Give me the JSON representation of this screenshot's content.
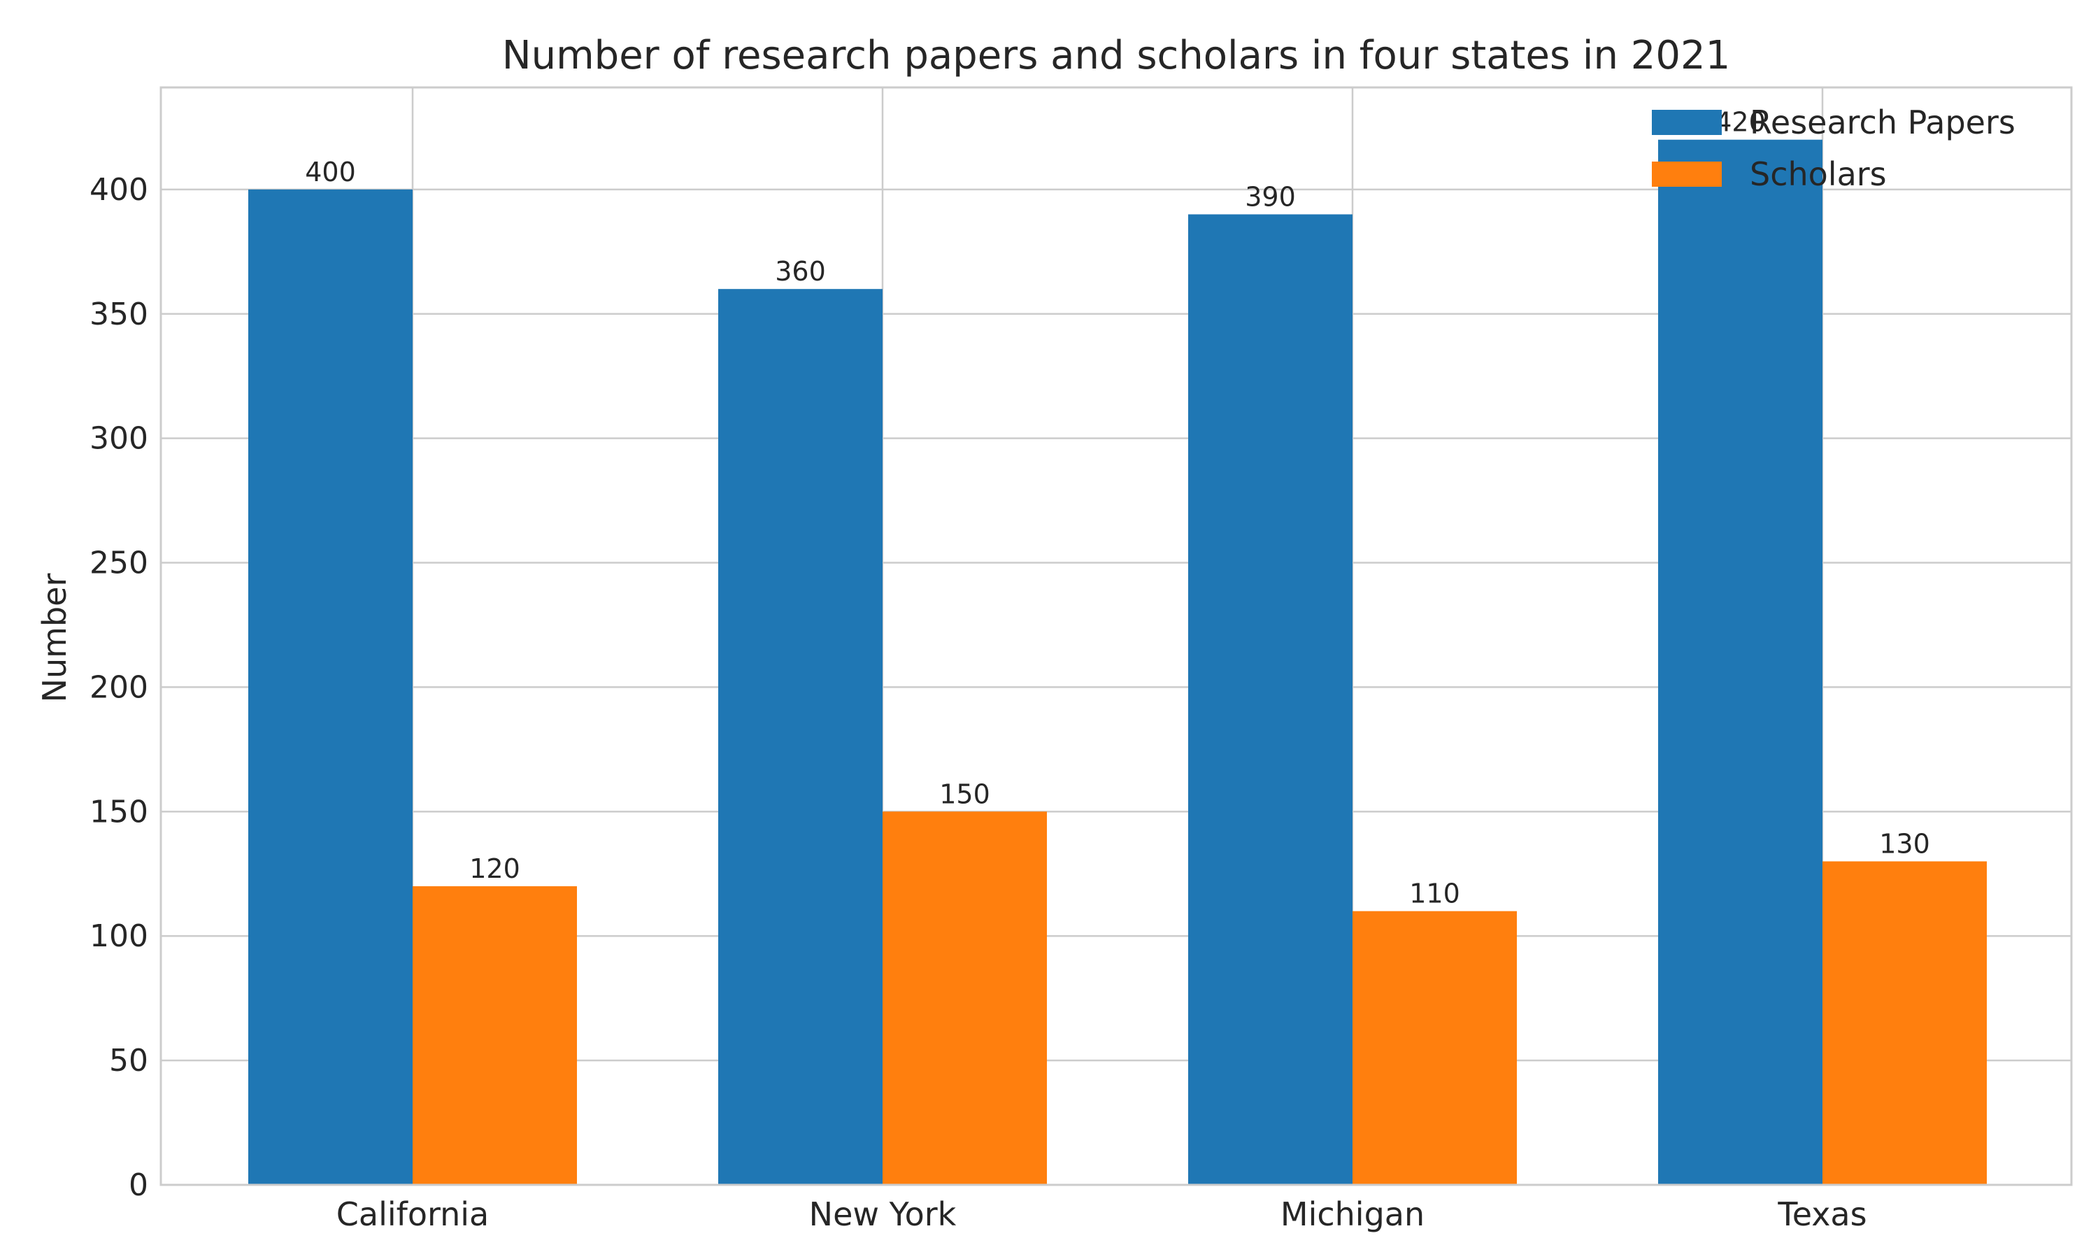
{
  "chart_data": {
    "type": "bar",
    "title": "Number of research papers and scholars in four states in 2021",
    "xlabel": "",
    "ylabel": "Number",
    "categories": [
      "California",
      "New York",
      "Michigan",
      "Texas"
    ],
    "series": [
      {
        "name": "Research Papers",
        "color": "#1f77b4",
        "values": [
          400,
          360,
          390,
          420
        ]
      },
      {
        "name": "Scholars",
        "color": "#ff7f0e",
        "values": [
          120,
          150,
          110,
          130
        ]
      }
    ],
    "ylim": [
      0,
      441
    ],
    "yticks": [
      0,
      50,
      100,
      150,
      200,
      250,
      300,
      350,
      400
    ],
    "grid": true,
    "legend": "top-right",
    "data_labels": true
  }
}
